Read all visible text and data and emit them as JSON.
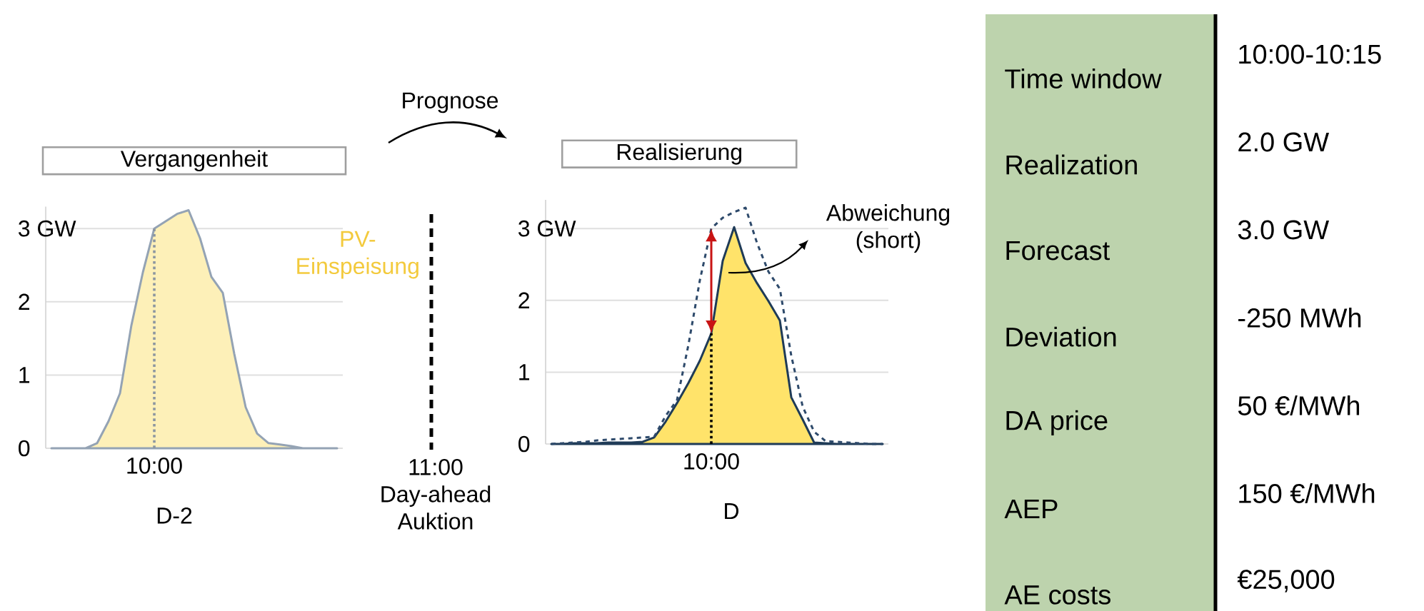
{
  "chart_data": [
    {
      "type": "area",
      "title": "Vergangenheit",
      "xlabel": "D-2",
      "ylim": [
        0,
        3.3
      ],
      "yticks": [
        {
          "value": 0,
          "label": "0"
        },
        {
          "value": 1,
          "label": "1"
        },
        {
          "value": 2,
          "label": "2"
        },
        {
          "value": 3,
          "label": "3 GW"
        }
      ],
      "grid": "y",
      "categories": [
        null,
        null,
        null,
        null,
        null,
        null,
        null,
        null,
        null,
        null,
        null,
        null,
        null,
        null,
        null,
        null,
        null,
        null,
        null,
        null,
        null,
        null,
        null,
        null,
        null,
        null
      ],
      "series": [
        {
          "name": "PV-Einspeisung",
          "color": "#fdf0b8",
          "values": [
            0,
            0,
            0,
            0,
            0.07,
            0.37,
            0.75,
            1.68,
            2.4,
            3.0,
            3.1,
            3.2,
            3.25,
            2.87,
            2.34,
            2.12,
            1.29,
            0.56,
            0.2,
            0.07,
            0.05,
            0.03,
            0,
            0,
            0,
            0
          ]
        }
      ],
      "annotations": [
        "10:00"
      ]
    },
    {
      "type": "area",
      "title": "Realisierung",
      "xlabel": "D",
      "ylim": [
        0,
        3.4
      ],
      "yticks": [
        {
          "value": 0,
          "label": "0"
        },
        {
          "value": 1,
          "label": "1"
        },
        {
          "value": 2,
          "label": "2"
        },
        {
          "value": 3,
          "label": "3 GW"
        }
      ],
      "grid": "y",
      "categories": [
        null,
        null,
        null,
        null,
        null,
        null,
        null,
        null,
        null,
        null,
        null,
        null,
        null,
        null,
        null,
        null,
        null,
        null,
        null,
        null,
        null,
        null,
        null,
        null,
        null,
        null,
        null,
        null,
        null,
        null
      ],
      "series": [
        {
          "color": "#ffe36a",
          "values": [
            0,
            0,
            0.01,
            0.01,
            0.01,
            0.02,
            0.02,
            0.02,
            0.03,
            0.09,
            0.31,
            0.57,
            0.85,
            1.16,
            1.54,
            2.55,
            3.02,
            2.52,
            2.24,
            1.99,
            1.72,
            0.65,
            0.34,
            0.02,
            0.01,
            0,
            0,
            0,
            0,
            0
          ]
        },
        {
          "type": "line",
          "line_style": "dashed",
          "color": "#2e4a6b",
          "values": [
            0,
            0.01,
            0.02,
            0.03,
            0.05,
            0.06,
            0.07,
            0.08,
            0.09,
            0.1,
            0.39,
            0.61,
            1.38,
            2.28,
            3.0,
            3.15,
            3.23,
            3.29,
            2.8,
            2.4,
            2.16,
            1.23,
            0.52,
            0.17,
            0.04,
            0.03,
            0.02,
            0.01,
            0,
            0
          ]
        }
      ],
      "annotations": [
        "10:00",
        "Prognose",
        "11:00 Day-ahead Auktion",
        "Abweichung (short)"
      ]
    },
    {
      "type": "other",
      "categories": [
        "Time window",
        "Realization",
        "Forecast",
        "Deviation",
        "DA price",
        "AEP",
        "AE costs"
      ],
      "annotations": [
        "10:00-10:15",
        "2.0 GW",
        "3.0 GW",
        "-250 MWh",
        "50 €/MWh",
        "150 €/MWh",
        "€25,000"
      ]
    }
  ]
}
